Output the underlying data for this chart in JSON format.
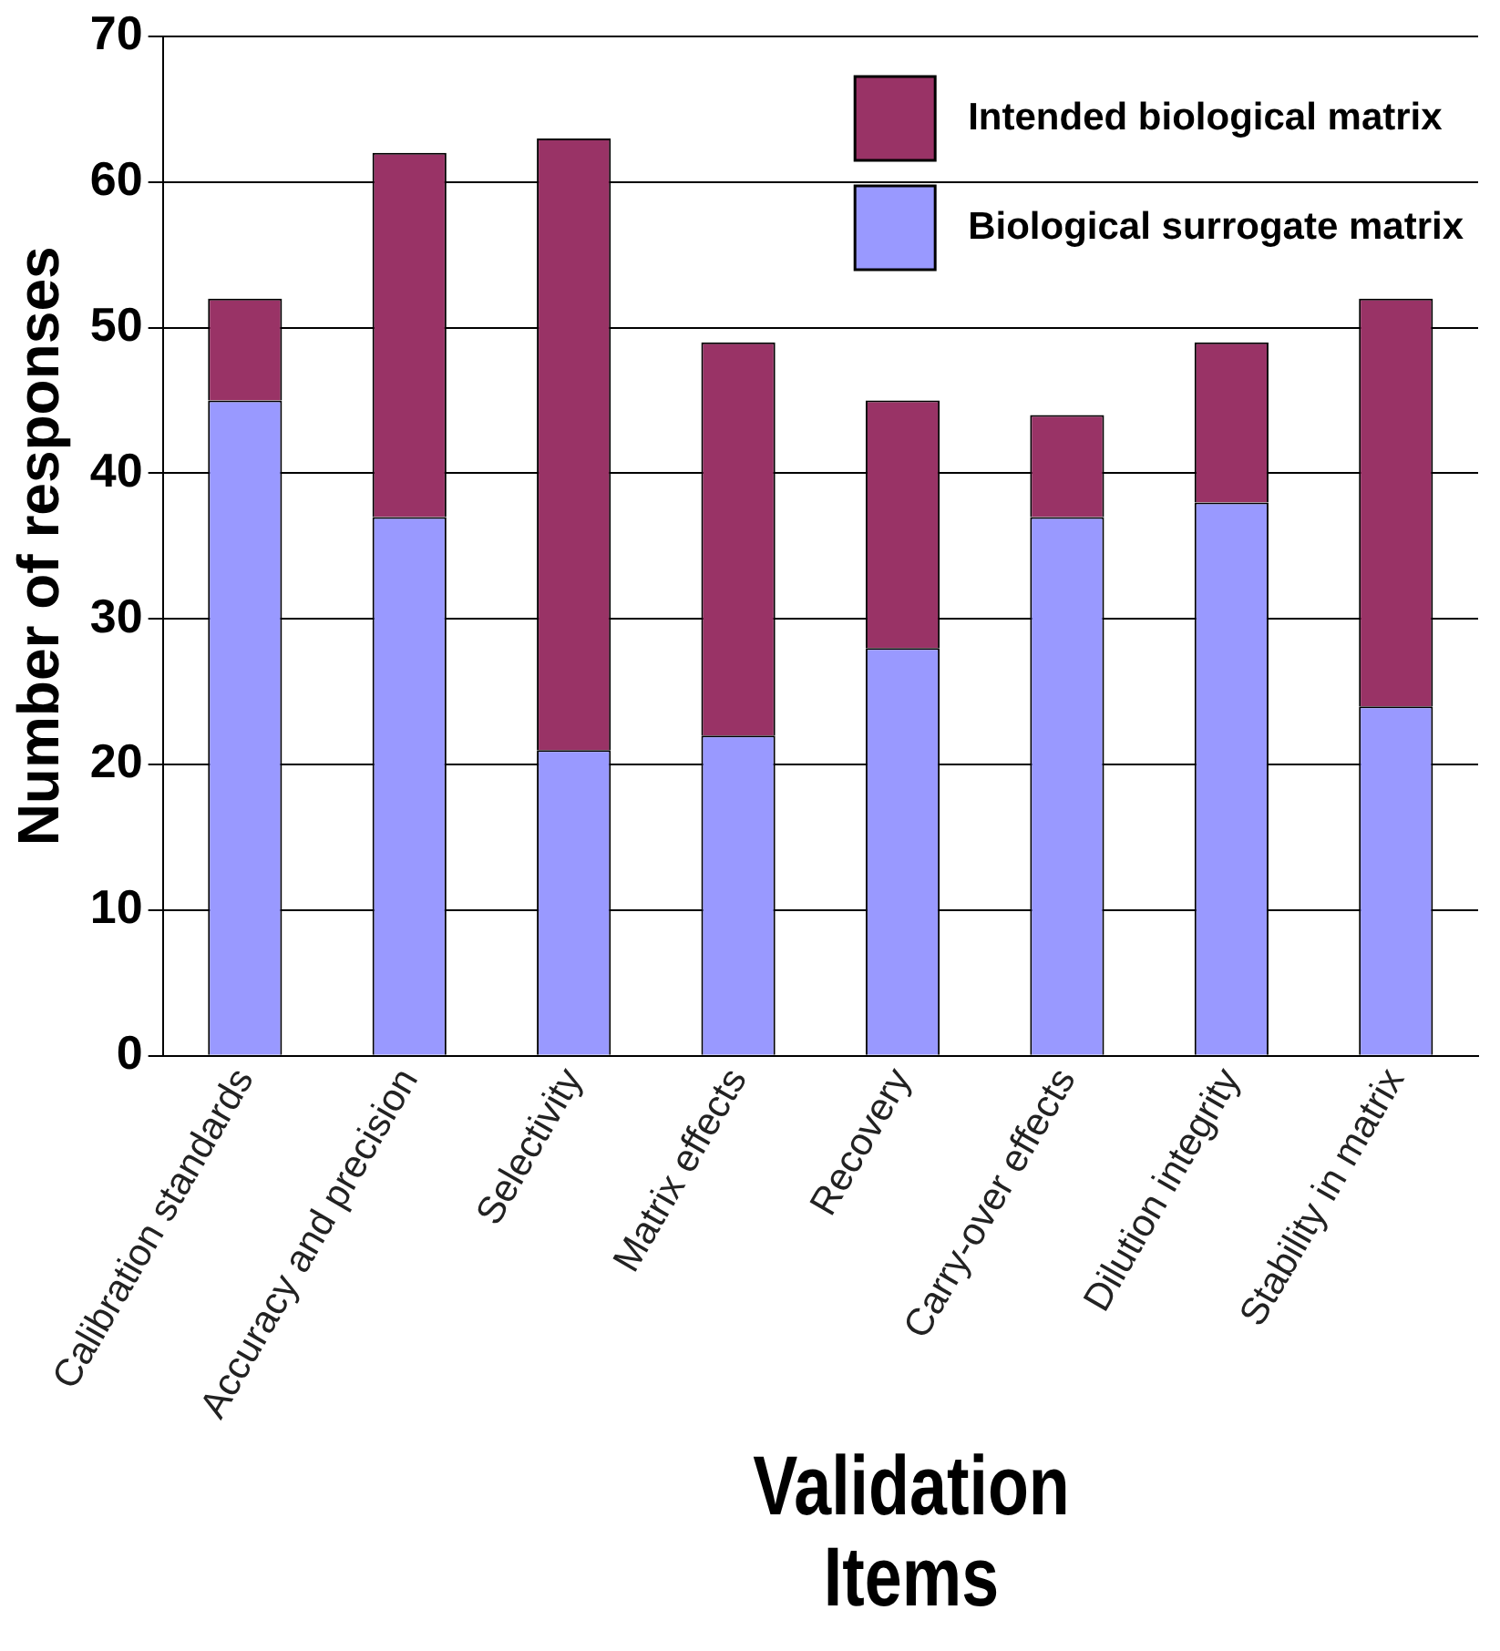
{
  "chart_data": {
    "type": "bar",
    "stacked": true,
    "xlabel": "Validation Items",
    "ylabel": "Number of responses",
    "categories": [
      "Calibration standards",
      "Accuracy and precision",
      "Selectivity",
      "Matrix effects",
      "Recovery",
      "Carry-over effects",
      "Dilution integrity",
      "Stability in matrix"
    ],
    "series": [
      {
        "name": "Biological surrogate matrix",
        "color": "#9999ff",
        "values": [
          45,
          37,
          21,
          22,
          28,
          37,
          38,
          24
        ]
      },
      {
        "name": "Intended biological matrix",
        "color": "#993366",
        "values": [
          7,
          25,
          42,
          27,
          17,
          7,
          11,
          28
        ]
      }
    ],
    "ylim": [
      0,
      70
    ],
    "yticks": [
      0,
      10,
      20,
      30,
      40,
      50,
      60,
      70
    ],
    "grid": "y",
    "legend": "top right"
  }
}
